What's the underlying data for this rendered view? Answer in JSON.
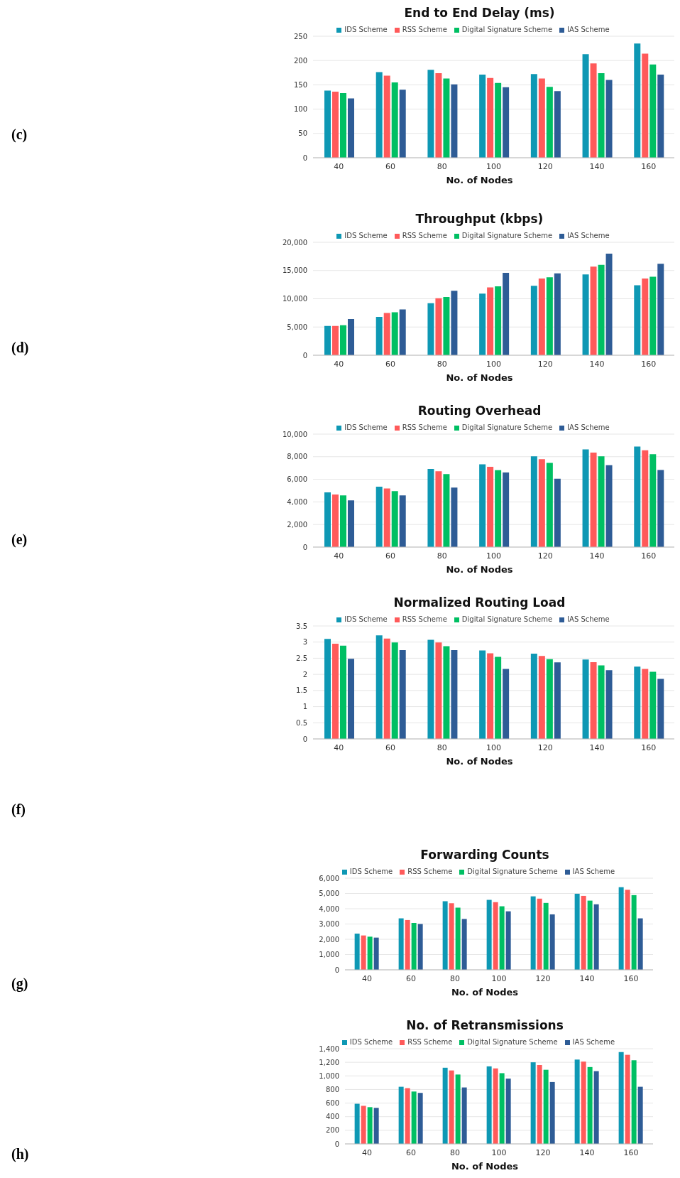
{
  "chart_data": [
    {
      "type": "bar",
      "title": "End to End Delay (ms)",
      "xlabel": "No. of Nodes",
      "annotations": [
        "(c)"
      ],
      "categories": [
        "40",
        "60",
        "80",
        "100",
        "120",
        "140",
        "160"
      ],
      "ylim": [
        0,
        250
      ],
      "yticks": [
        0,
        50,
        100,
        150,
        200,
        250
      ],
      "grid": "y",
      "legend": "top",
      "series": [
        {
          "name": "IDS Scheme",
          "color": "#0e98b4",
          "values": [
            138,
            176,
            181,
            171,
            172,
            213,
            235
          ]
        },
        {
          "name": "RSS Scheme",
          "color": "#ff5a5a",
          "values": [
            136,
            169,
            174,
            164,
            163,
            194,
            214
          ]
        },
        {
          "name": "Digital Signature Scheme",
          "color": "#00bf63",
          "values": [
            133,
            155,
            163,
            154,
            146,
            174,
            192
          ]
        },
        {
          "name": "IAS Scheme",
          "color": "#2e5c96",
          "values": [
            122,
            140,
            151,
            145,
            137,
            160,
            171
          ]
        }
      ]
    },
    {
      "type": "bar",
      "title": "Throughput (kbps)",
      "xlabel": "No. of Nodes",
      "annotations": [
        "(d)"
      ],
      "categories": [
        "40",
        "60",
        "80",
        "100",
        "120",
        "140",
        "160"
      ],
      "ylim": [
        0,
        20000
      ],
      "yticks": [
        0,
        {
          "value": 5000,
          "label": "5,000"
        },
        {
          "value": 10000,
          "label": "10,000"
        },
        {
          "value": 15000,
          "label": "15,000"
        },
        {
          "value": 20000,
          "label": "20,000"
        }
      ],
      "grid": "y",
      "legend": "top",
      "series": [
        {
          "name": "IDS Scheme",
          "color": "#0e98b4",
          "values": [
            5200,
            6800,
            9200,
            10900,
            12300,
            14300,
            12400
          ]
        },
        {
          "name": "RSS Scheme",
          "color": "#ff5a5a",
          "values": [
            5200,
            7500,
            10100,
            12000,
            13600,
            15700,
            13600
          ]
        },
        {
          "name": "Digital Signature Scheme",
          "color": "#00bf63",
          "values": [
            5300,
            7600,
            10300,
            12200,
            13800,
            16000,
            13900
          ]
        },
        {
          "name": "IAS Scheme",
          "color": "#2e5c96",
          "values": [
            6400,
            8100,
            11400,
            14600,
            14500,
            18000,
            16200
          ]
        }
      ]
    },
    {
      "type": "bar",
      "title": "Routing Overhead",
      "xlabel": "No. of Nodes",
      "annotations": [
        "(e)"
      ],
      "categories": [
        "40",
        "60",
        "80",
        "100",
        "120",
        "140",
        "160"
      ],
      "ylim": [
        0,
        10000
      ],
      "yticks": [
        0,
        {
          "value": 2000,
          "label": "2,000"
        },
        {
          "value": 4000,
          "label": "4,000"
        },
        {
          "value": 6000,
          "label": "6,000"
        },
        {
          "value": 8000,
          "label": "8,000"
        },
        {
          "value": 10000,
          "label": "10,000"
        }
      ],
      "grid": "y",
      "legend": "top",
      "series": [
        {
          "name": "IDS Scheme",
          "color": "#0e98b4",
          "values": [
            4840,
            5350,
            6920,
            7320,
            8030,
            8640,
            8900
          ]
        },
        {
          "name": "RSS Scheme",
          "color": "#ff5a5a",
          "values": [
            4650,
            5190,
            6710,
            7110,
            7790,
            8360,
            8570
          ]
        },
        {
          "name": "Digital Signature Scheme",
          "color": "#00bf63",
          "values": [
            4580,
            4950,
            6460,
            6810,
            7460,
            8030,
            8220
          ]
        },
        {
          "name": "IAS Scheme",
          "color": "#2e5c96",
          "values": [
            4130,
            4580,
            5260,
            6600,
            6060,
            7250,
            6830
          ]
        }
      ]
    },
    {
      "type": "bar",
      "title": "Normalized Routing Load",
      "xlabel": "No. of Nodes",
      "annotations": [
        "(f)"
      ],
      "categories": [
        "40",
        "60",
        "80",
        "100",
        "120",
        "140",
        "160"
      ],
      "ylim": [
        0,
        3.5
      ],
      "yticks": [
        0,
        0.5,
        1,
        1.5,
        2,
        2.5,
        3,
        3.5
      ],
      "grid": "y",
      "legend": "top",
      "series": [
        {
          "name": "IDS Scheme",
          "color": "#0e98b4",
          "values": [
            3.1,
            3.21,
            3.07,
            2.74,
            2.64,
            2.46,
            2.24
          ]
        },
        {
          "name": "RSS Scheme",
          "color": "#ff5a5a",
          "values": [
            2.95,
            3.11,
            2.99,
            2.65,
            2.57,
            2.38,
            2.17
          ]
        },
        {
          "name": "Digital Signature Scheme",
          "color": "#00bf63",
          "values": [
            2.89,
            2.99,
            2.87,
            2.54,
            2.47,
            2.28,
            2.08
          ]
        },
        {
          "name": "IAS Scheme",
          "color": "#2e5c96",
          "values": [
            2.48,
            2.75,
            2.75,
            2.17,
            2.37,
            2.13,
            1.86
          ]
        }
      ]
    },
    {
      "type": "bar",
      "title": "Forwarding Counts",
      "xlabel": "No. of Nodes",
      "annotations": [
        "(g)"
      ],
      "categories": [
        "40",
        "60",
        "80",
        "100",
        "120",
        "140",
        "160"
      ],
      "ylim": [
        0,
        6000
      ],
      "yticks": [
        0,
        {
          "value": 1000,
          "label": "1,000"
        },
        {
          "value": 2000,
          "label": "2,000"
        },
        {
          "value": 3000,
          "label": "3,000"
        },
        {
          "value": 4000,
          "label": "4,000"
        },
        {
          "value": 5000,
          "label": "5,000"
        },
        {
          "value": 6000,
          "label": "6,000"
        }
      ],
      "grid": "y",
      "legend": "top",
      "series": [
        {
          "name": "IDS Scheme",
          "color": "#0e98b4",
          "values": [
            2370,
            3370,
            4490,
            4580,
            4810,
            4980,
            5410
          ]
        },
        {
          "name": "RSS Scheme",
          "color": "#ff5a5a",
          "values": [
            2250,
            3260,
            4360,
            4430,
            4660,
            4840,
            5240
          ]
        },
        {
          "name": "Digital Signature Scheme",
          "color": "#00bf63",
          "values": [
            2170,
            3070,
            4070,
            4160,
            4380,
            4530,
            4890
          ]
        },
        {
          "name": "IAS Scheme",
          "color": "#2e5c96",
          "values": [
            2110,
            3000,
            3330,
            3830,
            3630,
            4290,
            3370
          ]
        }
      ]
    },
    {
      "type": "bar",
      "title": "No. of Retransmissions",
      "xlabel": "No. of Nodes",
      "annotations": [
        "(h)"
      ],
      "categories": [
        "40",
        "60",
        "80",
        "100",
        "120",
        "140",
        "160"
      ],
      "ylim": [
        0,
        1400
      ],
      "yticks": [
        0,
        200,
        400,
        600,
        800,
        {
          "value": 1000,
          "label": "1,000"
        },
        {
          "value": 1200,
          "label": "1,200"
        },
        {
          "value": 1400,
          "label": "1,400"
        }
      ],
      "grid": "y",
      "legend": "top",
      "series": [
        {
          "name": "IDS Scheme",
          "color": "#0e98b4",
          "values": [
            590,
            840,
            1120,
            1140,
            1200,
            1240,
            1350
          ]
        },
        {
          "name": "RSS Scheme",
          "color": "#ff5a5a",
          "values": [
            560,
            820,
            1080,
            1110,
            1160,
            1210,
            1310
          ]
        },
        {
          "name": "Digital Signature Scheme",
          "color": "#00bf63",
          "values": [
            540,
            770,
            1020,
            1040,
            1090,
            1130,
            1230
          ]
        },
        {
          "name": "IAS Scheme",
          "color": "#2e5c96",
          "values": [
            530,
            750,
            830,
            960,
            910,
            1070,
            840
          ]
        }
      ]
    }
  ]
}
